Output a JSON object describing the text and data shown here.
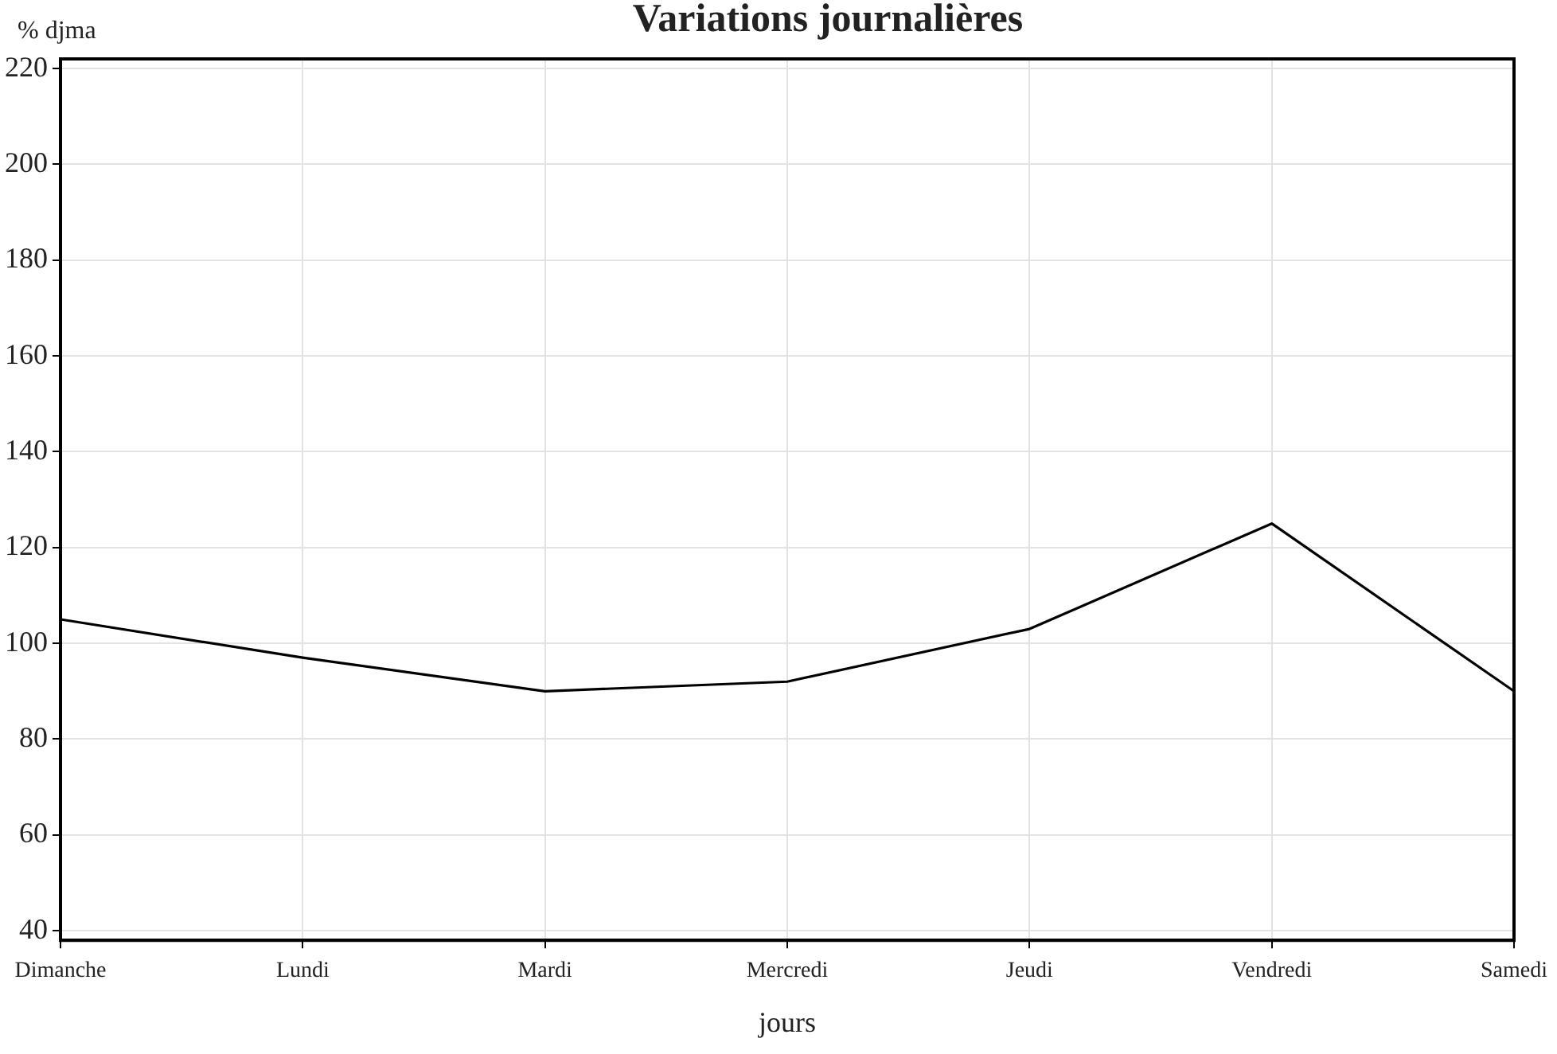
{
  "chart_data": {
    "type": "line",
    "title": "Variations journalières",
    "xlabel": "jours",
    "ylabel": "% djma",
    "categories": [
      "Dimanche",
      "Lundi",
      "Mardi",
      "Mercredi",
      "Jeudi",
      "Vendredi",
      "Samedi"
    ],
    "series": [
      {
        "color": "#000000",
        "values": [
          105,
          97,
          90,
          92,
          103,
          125,
          90
        ]
      }
    ],
    "ylim": [
      38,
      222
    ],
    "yticks": [
      40,
      60,
      80,
      100,
      120,
      140,
      160,
      180,
      200,
      220
    ],
    "grid": true,
    "legend": false,
    "marker": "none",
    "line_style": "solid"
  }
}
